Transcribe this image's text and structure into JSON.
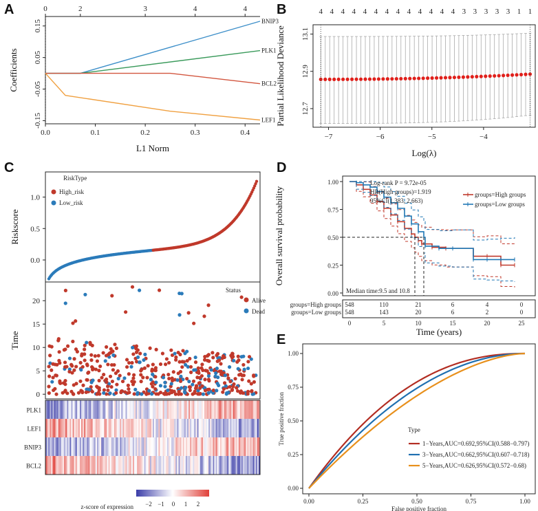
{
  "panels": {
    "A": "A",
    "B": "B",
    "C": "C",
    "D": "D",
    "E": "E"
  },
  "chart_data": [
    {
      "id": "A",
      "type": "line",
      "title": "",
      "xlabel": "L1 Norm",
      "ylabel": "Coefficients",
      "xlim": [
        0,
        0.43
      ],
      "ylim": [
        -0.16,
        0.18
      ],
      "x_ticks": [
        0.0,
        0.1,
        0.2,
        0.3,
        0.4
      ],
      "x_tick_labels": [
        "0.0",
        "0.1",
        "0.2",
        "0.3",
        "0.4"
      ],
      "y_ticks": [
        -0.15,
        -0.05,
        0.05,
        0.15
      ],
      "y_tick_labels": [
        "-0.15",
        "-0.05",
        "0.05",
        "0.15"
      ],
      "top_ticks": [
        0,
        0.07,
        0.2,
        0.3,
        0.4
      ],
      "top_tick_labels": [
        "0",
        "2",
        "3",
        "4",
        "4"
      ],
      "series": [
        {
          "name": "BNIP3",
          "color": "#3d8fc9",
          "x": [
            0,
            0.07,
            0.43
          ],
          "y": [
            0,
            0,
            0.165
          ]
        },
        {
          "name": "PLK1",
          "color": "#3a9a5b",
          "x": [
            0,
            0.07,
            0.43
          ],
          "y": [
            0,
            0,
            0.072
          ]
        },
        {
          "name": "BCL2",
          "color": "#d2553e",
          "x": [
            0,
            0.25,
            0.43
          ],
          "y": [
            0,
            0,
            -0.033
          ]
        },
        {
          "name": "LEF1",
          "color": "#f0a040",
          "x": [
            0,
            0.04,
            0.25,
            0.43
          ],
          "y": [
            0,
            -0.07,
            -0.12,
            -0.148
          ]
        }
      ]
    },
    {
      "id": "B",
      "type": "scatter",
      "xlabel": "Log(λ)",
      "ylabel": "Partial Likelihood Deviance",
      "xlim": [
        -7.3,
        -3.0
      ],
      "ylim": [
        12.6,
        13.15
      ],
      "x_ticks": [
        -7,
        -6,
        -5,
        -4
      ],
      "x_tick_labels": [
        "−7",
        "−6",
        "−5",
        "−4"
      ],
      "y_ticks": [
        12.7,
        12.9,
        13.1
      ],
      "y_tick_labels": [
        "12.7",
        "12.9",
        "13.1"
      ],
      "top_labels": [
        "4",
        "4",
        "4",
        "4",
        "4",
        "4",
        "4",
        "4",
        "4",
        "4",
        "4",
        "4",
        "4",
        "3",
        "3",
        "3",
        "3",
        "3",
        "1",
        "1"
      ],
      "x_start": -7.15,
      "x_end": -3.1,
      "y_start": 12.857,
      "y_end": 12.885,
      "upper_start": 13.087,
      "upper_end": 13.105,
      "lower_start": 12.62,
      "lower_end": 12.665,
      "vlines": [
        -7.15,
        -3.1
      ]
    },
    {
      "id": "C",
      "type": "scatter",
      "riskscore_ylabel": "Riskscore",
      "riskscore_ticks": [
        "0.0",
        "0.5",
        "1.0"
      ],
      "riskscore_tick_values": [
        0.0,
        0.5,
        1.0
      ],
      "risk_legend_title": "RiskType",
      "risk_legend": [
        "High_risk",
        "Low_risk"
      ],
      "time_ylabel": "Time",
      "time_ticks": [
        "0",
        "5",
        "10",
        "15",
        "20"
      ],
      "time_tick_values": [
        0,
        5,
        10,
        15,
        20
      ],
      "status_legend_title": "Status",
      "status_legend": [
        "Alive",
        "Dead"
      ],
      "heatmap_genes": [
        "PLK1",
        "LEF1",
        "BNIP3",
        "BCL2"
      ],
      "colorbar_label": "z-score of expression",
      "colorbar_ticks": [
        "−2",
        "−1",
        "0",
        "1",
        "2"
      ],
      "colors": {
        "high": "#c0392b",
        "low": "#2b7bba",
        "heat_low": "#3b3da8",
        "heat_mid": "#ffffff",
        "heat_high": "#e0413a"
      }
    },
    {
      "id": "D",
      "type": "line",
      "xlabel": "Time (years)",
      "ylabel": "Overall survival probability",
      "x_ticks": [
        "0",
        "5",
        "10",
        "15",
        "20",
        "25"
      ],
      "y_ticks": [
        "0.00",
        "0.25",
        "0.50",
        "0.75",
        "1.00"
      ],
      "annotations": [
        "Log-rank P = 9.72e-05",
        "HR(High groups)=1.919",
        "95%CI(1.383, 2.663)"
      ],
      "median_text": "Median time:9.5 and 10.8",
      "legend": [
        "groups=High groups",
        "groups=Low groups"
      ],
      "risk_table": {
        "rows": [
          {
            "label": "groups=High groups",
            "values": [
              "548",
              "110",
              "21",
              "6",
              "4",
              "0"
            ]
          },
          {
            "label": "groups=Low groups",
            "values": [
              "548",
              "143",
              "20",
              "6",
              "2",
              "0"
            ]
          }
        ]
      },
      "series": [
        {
          "name": "groups=High groups",
          "color": "#c0392b",
          "x": [
            0,
            1,
            2,
            3,
            4,
            5,
            6,
            7,
            8,
            9,
            9.5,
            10,
            10.5,
            12,
            14,
            18,
            20,
            22,
            24
          ],
          "y": [
            1.0,
            0.97,
            0.93,
            0.88,
            0.82,
            0.76,
            0.7,
            0.64,
            0.58,
            0.53,
            0.5,
            0.47,
            0.44,
            0.41,
            0.4,
            0.33,
            0.33,
            0.25,
            0.25
          ]
        },
        {
          "name": "groups=Low groups",
          "color": "#1f77b4",
          "x": [
            0,
            1,
            2,
            3,
            4,
            5,
            6,
            7,
            8,
            9,
            10,
            10.8,
            11,
            13,
            15,
            18,
            20,
            22,
            24
          ],
          "y": [
            1.0,
            0.99,
            0.97,
            0.95,
            0.91,
            0.86,
            0.81,
            0.76,
            0.69,
            0.62,
            0.55,
            0.5,
            0.42,
            0.4,
            0.4,
            0.3,
            0.3,
            0.3,
            0.3
          ]
        }
      ]
    },
    {
      "id": "E",
      "type": "line",
      "xlabel": "False positive fraction",
      "ylabel": "True positive fraction",
      "x_ticks": [
        "0.00",
        "0.25",
        "0.50",
        "0.75",
        "1.00"
      ],
      "y_ticks": [
        "0.00",
        "0.25",
        "0.50",
        "0.75",
        "1.00"
      ],
      "legend_title": "Type",
      "series": [
        {
          "name": "1−Years,AUC=0.692,95%CI(0.588−0.797)",
          "color": "#b22d22",
          "auc": 0.692
        },
        {
          "name": "3−Years,AUC=0.662,95%CI(0.607−0.718)",
          "color": "#1f6fb0",
          "auc": 0.662
        },
        {
          "name": "5−Years,AUC=0.626,95%CI(0.572−0.68)",
          "color": "#e8901c",
          "auc": 0.626
        }
      ]
    }
  ]
}
